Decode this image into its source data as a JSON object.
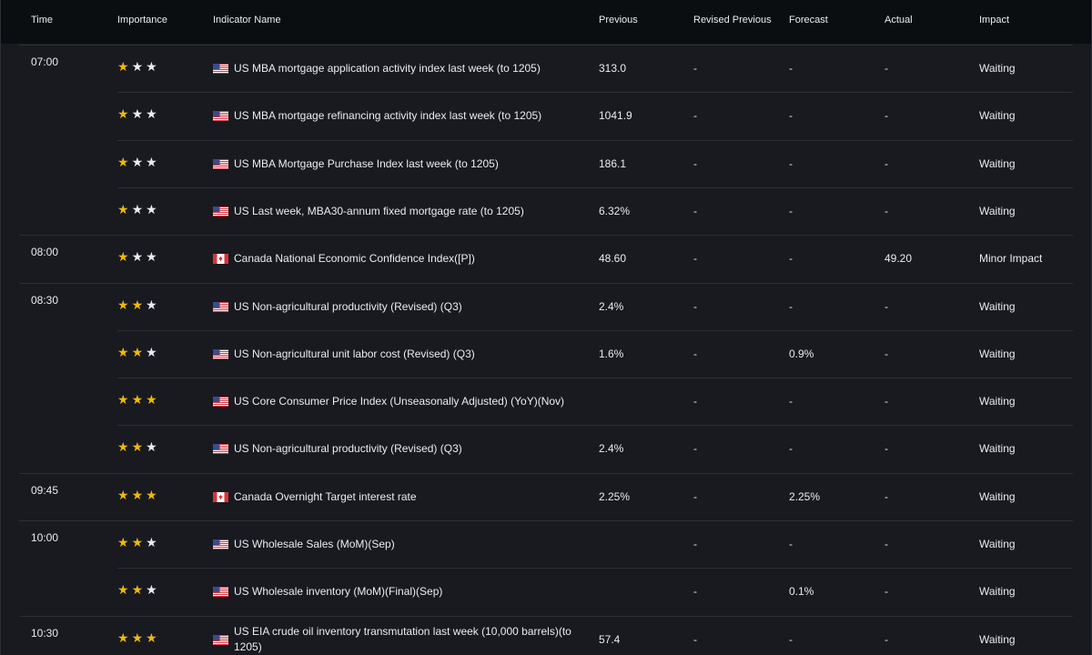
{
  "headers": {
    "time": "Time",
    "importance": "Importance",
    "indicator": "Indicator Name",
    "previous": "Previous",
    "revised_previous": "Revised Previous",
    "forecast": "Forecast",
    "actual": "Actual",
    "impact": "Impact"
  },
  "time_groups": [
    {
      "time": "07:00",
      "first_row": 0,
      "row_count": 4
    },
    {
      "time": "08:00",
      "first_row": 4,
      "row_count": 1
    },
    {
      "time": "08:30",
      "first_row": 5,
      "row_count": 4
    },
    {
      "time": "09:45",
      "first_row": 9,
      "row_count": 1
    },
    {
      "time": "10:00",
      "first_row": 10,
      "row_count": 2
    },
    {
      "time": "10:30",
      "first_row": 12,
      "row_count": 1
    }
  ],
  "rows": [
    {
      "stars": 1,
      "flag": "us-flag",
      "name": "US MBA mortgage application activity index last week (to 1205)",
      "previous": "313.0",
      "revised": "-",
      "forecast": "-",
      "actual": "-",
      "impact": "Waiting"
    },
    {
      "stars": 1,
      "flag": "us-flag",
      "name": "US MBA mortgage refinancing activity index last week (to 1205)",
      "previous": "1041.9",
      "revised": "-",
      "forecast": "-",
      "actual": "-",
      "impact": "Waiting"
    },
    {
      "stars": 1,
      "flag": "us-flag",
      "name": "US MBA Mortgage Purchase Index last week (to 1205)",
      "previous": "186.1",
      "revised": "-",
      "forecast": "-",
      "actual": "-",
      "impact": "Waiting"
    },
    {
      "stars": 1,
      "flag": "us-flag",
      "name": "US Last week, MBA30-annum fixed mortgage rate (to 1205)",
      "previous": "6.32%",
      "revised": "-",
      "forecast": "-",
      "actual": "-",
      "impact": "Waiting"
    },
    {
      "stars": 1,
      "flag": "ca-flag",
      "name": "Canada National Economic Confidence Index([P])",
      "previous": "48.60",
      "revised": "-",
      "forecast": "-",
      "actual": "49.20",
      "impact": "Minor Impact"
    },
    {
      "stars": 2,
      "flag": "us-flag",
      "name": "US Non-agricultural productivity (Revised) (Q3)",
      "previous": "2.4%",
      "revised": "-",
      "forecast": "-",
      "actual": "-",
      "impact": "Waiting"
    },
    {
      "stars": 2,
      "flag": "us-flag",
      "name": "US Non-agricultural unit labor cost (Revised) (Q3)",
      "previous": "1.6%",
      "revised": "-",
      "forecast": "0.9%",
      "actual": "-",
      "impact": "Waiting"
    },
    {
      "stars": 3,
      "flag": "us-flag",
      "name": "US Core Consumer Price Index (Unseasonally Adjusted) (YoY)(Nov)",
      "previous": "",
      "revised": "-",
      "forecast": "-",
      "actual": "-",
      "impact": "Waiting"
    },
    {
      "stars": 2,
      "flag": "us-flag",
      "name": "US Non-agricultural productivity (Revised) (Q3)",
      "previous": "2.4%",
      "revised": "-",
      "forecast": "-",
      "actual": "-",
      "impact": "Waiting"
    },
    {
      "stars": 3,
      "flag": "ca-flag",
      "name": "Canada Overnight Target interest rate",
      "previous": "2.25%",
      "revised": "-",
      "forecast": "2.25%",
      "actual": "-",
      "impact": "Waiting"
    },
    {
      "stars": 2,
      "flag": "us-flag",
      "name": "US Wholesale Sales (MoM)(Sep)",
      "previous": "",
      "revised": "-",
      "forecast": "-",
      "actual": "-",
      "impact": "Waiting"
    },
    {
      "stars": 2,
      "flag": "us-flag",
      "name": "US Wholesale inventory (MoM)(Final)(Sep)",
      "previous": "",
      "revised": "-",
      "forecast": "0.1%",
      "actual": "-",
      "impact": "Waiting"
    },
    {
      "stars": 3,
      "flag": "us-flag",
      "name": "US EIA crude oil inventory transmutation last week (10,000 barrels)(to 1205)",
      "previous": "57.4",
      "revised": "-",
      "forecast": "-",
      "actual": "-",
      "impact": "Waiting"
    }
  ],
  "colors": {
    "star_active": "#f0b90b",
    "star_inactive": "#eaecef",
    "background": "#181a20",
    "header_background": "#0b0e11",
    "divider": "#2b2f36"
  }
}
